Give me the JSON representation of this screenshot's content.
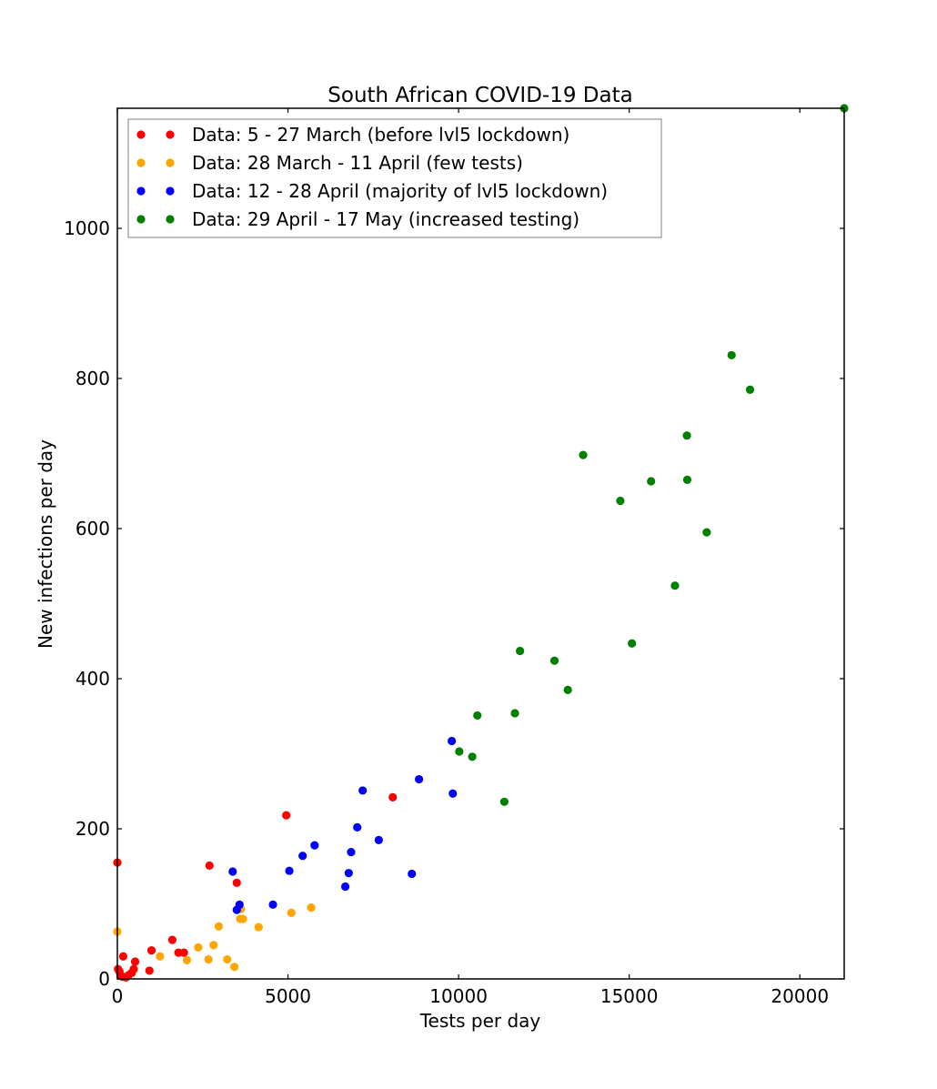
{
  "chart_data": {
    "type": "scatter",
    "title": "South African COVID-19 Data",
    "xlabel": "Tests per day",
    "ylabel": "New infections per day",
    "xlim": [
      0,
      21300
    ],
    "ylim": [
      0,
      1160
    ],
    "xticks": [
      {
        "value": 0,
        "label": "0"
      },
      {
        "value": 5000,
        "label": "5000"
      },
      {
        "value": 10000,
        "label": "10000"
      },
      {
        "value": 15000,
        "label": "15000"
      },
      {
        "value": 20000,
        "label": "20000"
      }
    ],
    "yticks": [
      {
        "value": 0,
        "label": "0"
      },
      {
        "value": 200,
        "label": "200"
      },
      {
        "value": 400,
        "label": "400"
      },
      {
        "value": 600,
        "label": "600"
      },
      {
        "value": 800,
        "label": "800"
      },
      {
        "value": 1000,
        "label": "1000"
      }
    ],
    "grid": false,
    "legend_position": "top-left",
    "series": [
      {
        "name": "Data: 5 - 27 March (before lvl5 lockdown)",
        "color": "#ff0000",
        "points": [
          [
            0,
            155
          ],
          [
            20,
            13
          ],
          [
            60,
            10
          ],
          [
            90,
            5
          ],
          [
            150,
            3
          ],
          [
            170,
            30
          ],
          [
            250,
            2
          ],
          [
            330,
            5
          ],
          [
            420,
            8
          ],
          [
            480,
            13
          ],
          [
            520,
            23
          ],
          [
            940,
            11
          ],
          [
            1000,
            38
          ],
          [
            1610,
            52
          ],
          [
            1790,
            35
          ],
          [
            1950,
            35
          ],
          [
            2700,
            151
          ],
          [
            3500,
            128
          ],
          [
            4950,
            218
          ],
          [
            8070,
            242
          ]
        ]
      },
      {
        "name": "Data: 28 March - 11 April (few tests)",
        "color": "#ffa500",
        "points": [
          [
            0,
            63
          ],
          [
            1250,
            30
          ],
          [
            2040,
            25
          ],
          [
            2370,
            42
          ],
          [
            2670,
            26
          ],
          [
            2820,
            45
          ],
          [
            2970,
            70
          ],
          [
            3220,
            26
          ],
          [
            3430,
            16
          ],
          [
            3600,
            80
          ],
          [
            3620,
            93
          ],
          [
            3680,
            80
          ],
          [
            4140,
            69
          ],
          [
            5100,
            88
          ],
          [
            5680,
            95
          ]
        ]
      },
      {
        "name": "Data: 12 - 28 April (majority of lvl5 lockdown)",
        "color": "#0000ff",
        "points": [
          [
            3380,
            143
          ],
          [
            3500,
            92
          ],
          [
            3580,
            99
          ],
          [
            4560,
            99
          ],
          [
            5040,
            144
          ],
          [
            5430,
            164
          ],
          [
            5780,
            178
          ],
          [
            6680,
            123
          ],
          [
            6780,
            141
          ],
          [
            6850,
            169
          ],
          [
            7030,
            202
          ],
          [
            7190,
            251
          ],
          [
            7660,
            185
          ],
          [
            8630,
            140
          ],
          [
            8840,
            266
          ],
          [
            9800,
            317
          ],
          [
            9830,
            247
          ]
        ]
      },
      {
        "name": "Data: 29 April - 17 May (increased testing)",
        "color": "#008000",
        "points": [
          [
            10020,
            303
          ],
          [
            10400,
            296
          ],
          [
            10550,
            351
          ],
          [
            11340,
            236
          ],
          [
            11650,
            354
          ],
          [
            11800,
            437
          ],
          [
            12810,
            424
          ],
          [
            13200,
            385
          ],
          [
            13650,
            698
          ],
          [
            14740,
            637
          ],
          [
            15080,
            447
          ],
          [
            15640,
            663
          ],
          [
            16340,
            524
          ],
          [
            16690,
            724
          ],
          [
            16700,
            665
          ],
          [
            17270,
            595
          ],
          [
            18000,
            831
          ],
          [
            18540,
            785
          ],
          [
            21300,
            1160
          ]
        ]
      }
    ]
  }
}
